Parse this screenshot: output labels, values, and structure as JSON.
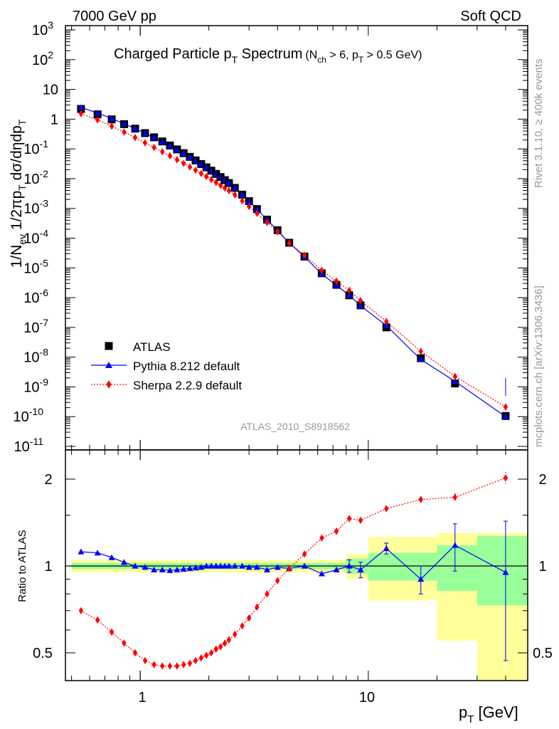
{
  "header": {
    "left": "7000 GeV pp",
    "right": "Soft QCD"
  },
  "side_labels": {
    "rivet": "Rivet 3.1.10, ≥ 400k events",
    "mcplots": "mcplots.cern.ch [arXiv:1306.3436]"
  },
  "watermark": "ATLAS_2010_S8918562",
  "main_title": {
    "text": "Charged Particle p",
    "sub": "T",
    "rest": " Spectrum",
    "cut_part1": "(N",
    "cut_sub1": "ch",
    "cut_part2": " > 6, p",
    "cut_sub2": "T",
    "cut_part3": " > 0.5 GeV)"
  },
  "chart_data": [
    {
      "type": "line",
      "xscale": "log",
      "yscale": "log",
      "xlim": [
        0.47,
        50
      ],
      "ylim": [
        1e-11,
        1000.0
      ],
      "ylabel": "1/N_ev 1/2πp_T dσ/dηdp_T",
      "yticks": [
        "10^-11",
        "10^-10",
        "10^-9",
        "10^-8",
        "10^-7",
        "10^-6",
        "10^-5",
        "10^-4",
        "10^-3",
        "10^-2",
        "10^-1",
        "1",
        "10",
        "10^2",
        "10^3"
      ],
      "legend_position": "lower-left",
      "x": [
        0.55,
        0.65,
        0.75,
        0.85,
        0.95,
        1.05,
        1.15,
        1.25,
        1.35,
        1.45,
        1.55,
        1.65,
        1.75,
        1.85,
        1.95,
        2.05,
        2.15,
        2.25,
        2.35,
        2.45,
        2.6,
        2.8,
        3.0,
        3.25,
        3.6,
        4.0,
        4.5,
        5.25,
        6.25,
        7.25,
        8.25,
        9.25,
        12.0,
        17.0,
        24.0,
        40.0
      ],
      "series": [
        {
          "name": "ATLAS",
          "color": "#000000",
          "marker": "square",
          "values": [
            2.2,
            1.45,
            0.98,
            0.68,
            0.48,
            0.34,
            0.245,
            0.178,
            0.13,
            0.096,
            0.072,
            0.054,
            0.041,
            0.031,
            0.024,
            0.0185,
            0.0144,
            0.0113,
            0.0089,
            0.0071,
            0.0049,
            0.0029,
            0.00175,
            0.00095,
            0.00042,
            0.000185,
            7e-05,
            2.4e-05,
            6.6e-06,
            2.7e-06,
            1.2e-06,
            5.5e-07,
            1e-07,
            9.2e-09,
            1.3e-09,
            1.05e-10
          ]
        },
        {
          "name": "Pythia 8.212 default",
          "color": "#0000ff",
          "marker": "triangle",
          "ratio": [
            1.12,
            1.11,
            1.07,
            1.03,
            1.0,
            0.99,
            0.97,
            0.97,
            0.965,
            0.97,
            0.975,
            0.98,
            0.985,
            0.99,
            1.0,
            1.0,
            1.0,
            1.0,
            1.0,
            1.0,
            1.0,
            1.0,
            0.99,
            0.99,
            0.97,
            0.99,
            0.98,
            1.0,
            0.94,
            0.97,
            1.0,
            0.97,
            1.15,
            0.9,
            1.18,
            0.95
          ]
        },
        {
          "name": "Sherpa 2.2.9 default",
          "color": "#ff0000",
          "marker": "diamond",
          "dotted": true,
          "ratio": [
            0.7,
            0.65,
            0.59,
            0.54,
            0.5,
            0.47,
            0.455,
            0.45,
            0.45,
            0.45,
            0.455,
            0.46,
            0.47,
            0.48,
            0.49,
            0.5,
            0.515,
            0.525,
            0.54,
            0.555,
            0.58,
            0.62,
            0.66,
            0.72,
            0.8,
            0.89,
            0.98,
            1.1,
            1.25,
            1.32,
            1.46,
            1.44,
            1.58,
            1.7,
            1.73,
            2.02
          ]
        }
      ]
    },
    {
      "type": "line",
      "xscale": "log",
      "yscale": "log",
      "xlim": [
        0.47,
        50
      ],
      "ylim": [
        0.42,
        2.35
      ],
      "ylabel": "Ratio to ATLAS",
      "xlabel": "p_T [GeV]",
      "xtick_labels": [
        "1",
        "10"
      ],
      "ytick_labels": [
        "0.5",
        "1",
        "2"
      ],
      "bands": [
        {
          "xlo": 0.5,
          "xhi": 8.0,
          "green": [
            0.975,
            1.025
          ],
          "yellow": [
            0.95,
            1.05
          ]
        },
        {
          "xlo": 8.0,
          "xhi": 10.0,
          "green": [
            0.94,
            1.06
          ],
          "yellow": [
            0.9,
            1.1
          ]
        },
        {
          "xlo": 10.0,
          "xhi": 20.0,
          "green": [
            0.89,
            1.11
          ],
          "yellow": [
            0.76,
            1.26
          ]
        },
        {
          "xlo": 20.0,
          "xhi": 30.0,
          "green": [
            0.82,
            1.18
          ],
          "yellow": [
            0.55,
            1.3
          ]
        },
        {
          "xlo": 30.0,
          "xhi": 50.0,
          "green": [
            0.73,
            1.27
          ],
          "yellow": [
            0.4,
            1.3
          ]
        }
      ]
    }
  ]
}
